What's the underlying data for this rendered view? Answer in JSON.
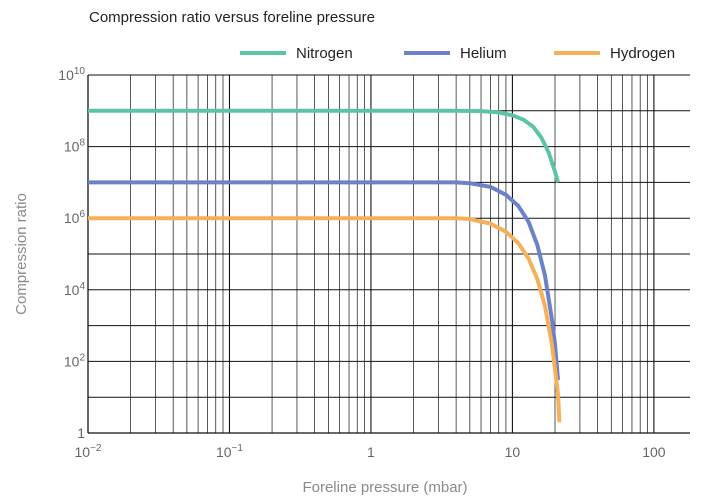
{
  "chart_data": {
    "type": "line",
    "title": "Compression ratio versus foreline pressure",
    "xlabel": "Foreline pressure (mbar)",
    "ylabel": "Compression ratio",
    "xscale": "log",
    "yscale": "log",
    "xlim": [
      0.01,
      180
    ],
    "ylim": [
      1,
      10000000000
    ],
    "x_ticks": [
      {
        "value": 0.01,
        "base": "10",
        "exp": "−2"
      },
      {
        "value": 0.1,
        "base": "10",
        "exp": "−1"
      },
      {
        "value": 1,
        "base": "1",
        "exp": ""
      },
      {
        "value": 10,
        "base": "10",
        "exp": ""
      },
      {
        "value": 100,
        "base": "100",
        "exp": ""
      }
    ],
    "y_ticks": [
      {
        "value": 1,
        "base": "1",
        "exp": ""
      },
      {
        "value": 100,
        "base": "10",
        "exp": "2"
      },
      {
        "value": 10000,
        "base": "10",
        "exp": "4"
      },
      {
        "value": 1000000,
        "base": "10",
        "exp": "6"
      },
      {
        "value": 100000000,
        "base": "10",
        "exp": "8"
      },
      {
        "value": 10000000000,
        "base": "10",
        "exp": "10"
      }
    ],
    "grid": true,
    "legend_position": "top",
    "series": [
      {
        "name": "Nitrogen",
        "color": "#5cc3a8",
        "x": [
          0.01,
          0.1,
          1,
          4,
          6,
          8,
          10,
          12,
          14,
          16,
          18,
          20,
          21
        ],
        "y": [
          1000000000,
          1000000000,
          1000000000,
          1000000000,
          980000000,
          900000000,
          750000000,
          560000000,
          360000000,
          180000000,
          70000000,
          20000000,
          10000000
        ]
      },
      {
        "name": "Helium",
        "color": "#6b82c8",
        "x": [
          0.01,
          0.1,
          1,
          4,
          5,
          7,
          9,
          11,
          13,
          15,
          17,
          19,
          20,
          21
        ],
        "y": [
          10000000,
          10000000,
          10000000,
          10000000,
          9500000,
          7500000,
          4500000,
          2200000,
          800000,
          180000,
          25000,
          1500,
          300,
          30
        ]
      },
      {
        "name": "Hydrogen",
        "color": "#f6b05a",
        "x": [
          0.01,
          0.1,
          1,
          4,
          5,
          7,
          9,
          11,
          13,
          15,
          17,
          19,
          20,
          21,
          21.5
        ],
        "y": [
          1000000,
          1000000,
          1000000,
          1000000,
          950000,
          700000,
          420000,
          200000,
          75000,
          20000,
          3500,
          300,
          60,
          12,
          2
        ]
      }
    ]
  }
}
